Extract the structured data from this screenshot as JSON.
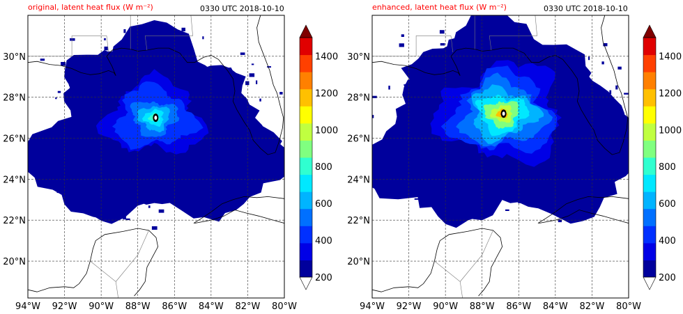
{
  "chart_data": [
    {
      "type": "heatmap",
      "title": "original, latent heat flux (W m⁻²)",
      "time_label": "0330 UTC 2018-10-10",
      "lon_range": [
        -94,
        -80
      ],
      "lat_range": [
        18.2,
        32.0
      ],
      "xticks": [
        "94°W",
        "92°W",
        "90°W",
        "88°W",
        "86°W",
        "84°W",
        "82°W",
        "80°W"
      ],
      "yticks": [
        "30°N",
        "28°N",
        "26°N",
        "24°N",
        "22°N",
        "20°N"
      ],
      "grid": true,
      "storm_center": {
        "lon": -87.1,
        "lat": 27.0
      },
      "peak_flux": 1000,
      "field_extent_deg": 6.0
    },
    {
      "type": "heatmap",
      "title": "enhanced, latent heat flux (W m⁻²)",
      "time_label": "0330 UTC 2018-10-10",
      "lon_range": [
        -94,
        -80
      ],
      "lat_range": [
        18.2,
        32.0
      ],
      "xticks": [
        "94°W",
        "92°W",
        "90°W",
        "88°W",
        "86°W",
        "84°W",
        "82°W",
        "80°W"
      ],
      "yticks": [
        "30°N",
        "28°N",
        "26°N",
        "24°N",
        "22°N",
        "20°N"
      ],
      "grid": true,
      "storm_center": {
        "lon": -86.9,
        "lat": 27.2
      },
      "peak_flux": 1450,
      "field_extent_deg": 6.4
    }
  ],
  "colorbar": {
    "levels": [
      200,
      300,
      400,
      500,
      600,
      700,
      800,
      900,
      1000,
      1100,
      1200,
      1300,
      1400,
      1500
    ],
    "tick_labels": [
      "200",
      "400",
      "600",
      "800",
      "1000",
      "1200",
      "1400"
    ],
    "colors": [
      "#00009c",
      "#0000e6",
      "#0030ff",
      "#0070ff",
      "#00b4ff",
      "#00e8ff",
      "#30ffd0",
      "#80ff80",
      "#c0ff40",
      "#ffff00",
      "#ffc000",
      "#ff8000",
      "#ff4000",
      "#e00000"
    ],
    "over_color": "#800000",
    "under_color": "#ffffff",
    "background_land": "#ffffff"
  }
}
